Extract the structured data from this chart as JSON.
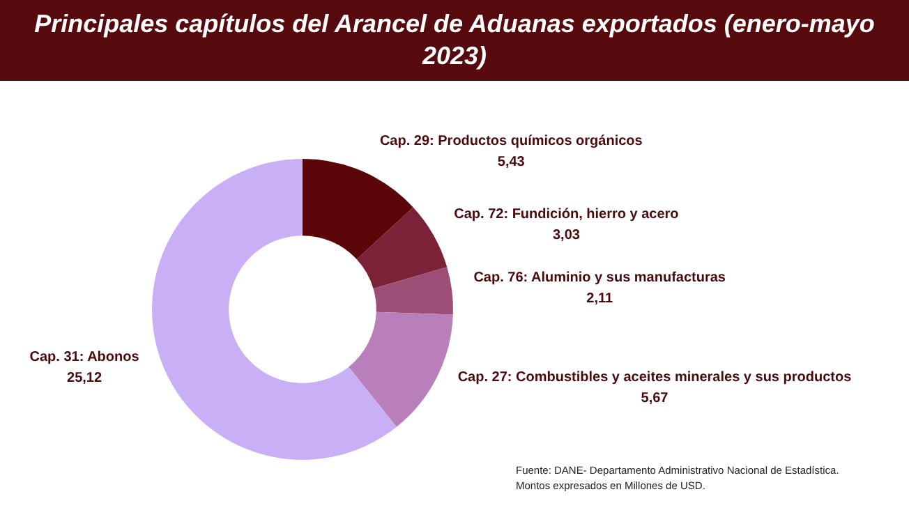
{
  "chart_data": {
    "type": "donut",
    "title": "Principales capítulos del Arancel de Aduanas exportados (enero-mayo 2023)",
    "categories": [
      "Cap. 29: Productos químicos orgánicos",
      "Cap. 72: Fundición, hierro y acero",
      "Cap. 76: Aluminio y sus manufacturas",
      "Cap. 27: Combustibles y aceites minerales y sus productos",
      "Cap. 31: Abonos"
    ],
    "values": [
      5.43,
      3.03,
      2.11,
      5.67,
      25.12
    ],
    "value_labels": [
      "5,43",
      "3,03",
      "2,11",
      "5,67",
      "25,12"
    ],
    "colors": [
      "#5a0508",
      "#7c2238",
      "#9c4e76",
      "#b97fbb",
      "#c9aff5"
    ],
    "annotations": [
      "Fuente: DANE- Departamento Administrativo Nacional de Estadística.",
      "Montos expresados en Millones de USD."
    ],
    "legend": false
  }
}
